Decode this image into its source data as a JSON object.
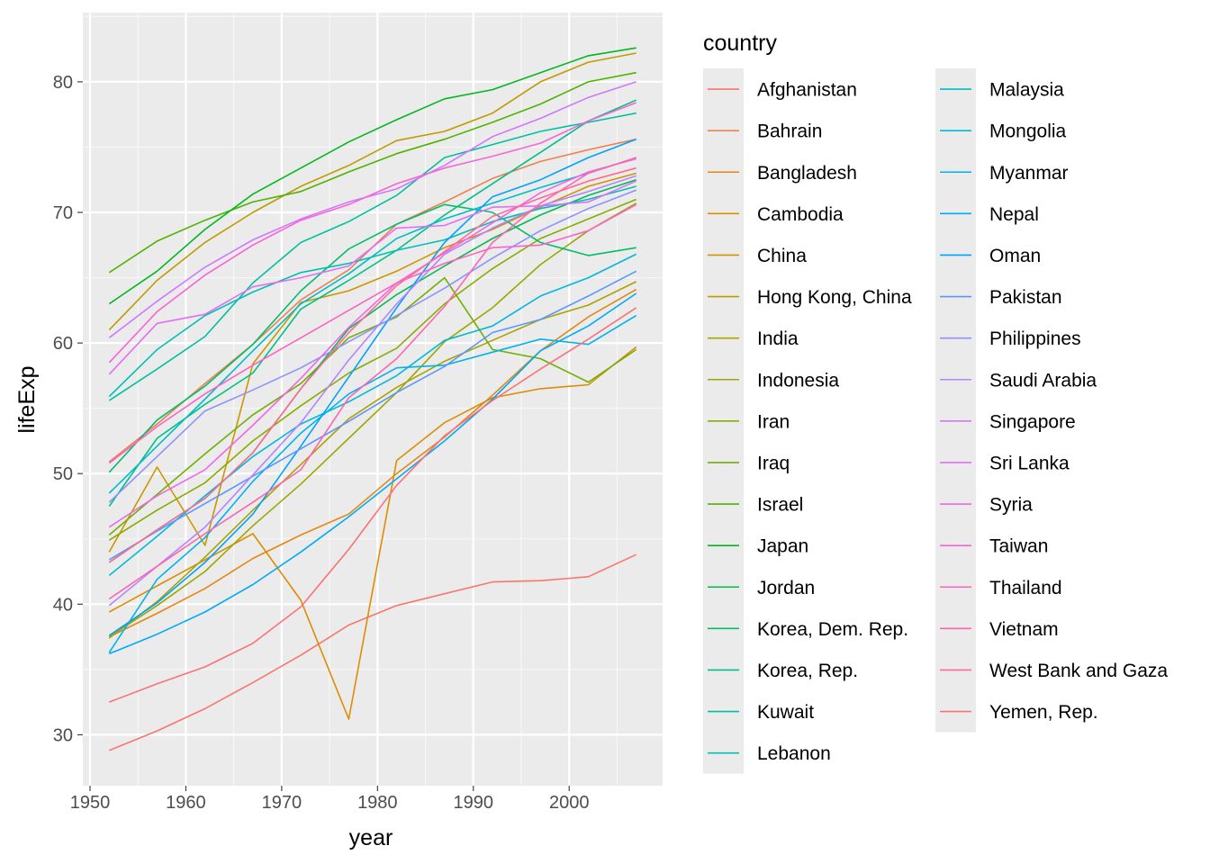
{
  "chart_data": {
    "type": "line",
    "xlabel": "year",
    "ylabel": "lifeExp",
    "x_ticks": [
      1950,
      1960,
      1970,
      1980,
      1990,
      2000
    ],
    "y_ticks": [
      30,
      40,
      50,
      60,
      70,
      80
    ],
    "xlim": [
      1949.25,
      2009.75
    ],
    "ylim": [
      26.1,
      85.3
    ],
    "grid": true,
    "legend_title": "country",
    "legend_position": "right",
    "x": [
      1952,
      1957,
      1962,
      1967,
      1972,
      1977,
      1982,
      1987,
      1992,
      1997,
      2002,
      2007
    ],
    "series": [
      {
        "name": "Afghanistan",
        "color": "#F8766D",
        "values": [
          28.8,
          30.3,
          32.0,
          34.0,
          36.1,
          38.4,
          39.9,
          40.8,
          41.7,
          41.8,
          42.1,
          43.8
        ]
      },
      {
        "name": "Bahrain",
        "color": "#F07F4F",
        "values": [
          50.9,
          53.8,
          56.9,
          59.9,
          63.3,
          65.6,
          69.1,
          70.8,
          72.6,
          73.9,
          74.8,
          75.6
        ]
      },
      {
        "name": "Bangladesh",
        "color": "#E68613",
        "values": [
          37.5,
          39.3,
          41.2,
          43.5,
          45.3,
          46.9,
          50.0,
          52.8,
          56.0,
          59.4,
          62.0,
          64.1
        ]
      },
      {
        "name": "Cambodia",
        "color": "#DB8E00",
        "values": [
          39.4,
          41.4,
          43.4,
          45.4,
          40.3,
          31.2,
          51.0,
          53.9,
          55.8,
          56.5,
          56.8,
          59.7
        ]
      },
      {
        "name": "China",
        "color": "#CD9600",
        "values": [
          44.0,
          50.5,
          44.5,
          58.4,
          63.1,
          64.0,
          65.5,
          67.3,
          68.7,
          70.4,
          72.0,
          73.0
        ]
      },
      {
        "name": "Hong Kong, China",
        "color": "#BE9C00",
        "values": [
          61.0,
          64.8,
          67.7,
          70.0,
          72.0,
          73.6,
          75.5,
          76.2,
          77.6,
          80.0,
          81.5,
          82.2
        ]
      },
      {
        "name": "India",
        "color": "#AEA200",
        "values": [
          37.4,
          40.2,
          43.6,
          47.2,
          50.7,
          54.2,
          56.6,
          58.6,
          60.2,
          61.8,
          62.9,
          64.7
        ]
      },
      {
        "name": "Indonesia",
        "color": "#9CA700",
        "values": [
          37.5,
          39.9,
          42.5,
          46.0,
          49.2,
          52.7,
          56.2,
          60.1,
          62.7,
          66.0,
          68.6,
          70.7
        ]
      },
      {
        "name": "Iran",
        "color": "#88AC00",
        "values": [
          44.9,
          47.2,
          49.3,
          52.5,
          55.2,
          57.7,
          59.6,
          63.0,
          65.7,
          68.0,
          69.5,
          71.0
        ]
      },
      {
        "name": "Iraq",
        "color": "#6FB000",
        "values": [
          45.3,
          48.4,
          51.5,
          54.5,
          56.9,
          60.4,
          62.0,
          65.0,
          59.5,
          58.8,
          57.0,
          59.5
        ]
      },
      {
        "name": "Israel",
        "color": "#4EB400",
        "values": [
          65.4,
          67.8,
          69.4,
          70.8,
          71.6,
          73.1,
          74.5,
          75.6,
          76.9,
          78.3,
          80.0,
          80.7
        ]
      },
      {
        "name": "Japan",
        "color": "#00B81F",
        "values": [
          63.0,
          65.5,
          68.7,
          71.4,
          73.4,
          75.4,
          77.1,
          78.7,
          79.4,
          80.7,
          82.0,
          82.6
        ]
      },
      {
        "name": "Jordan",
        "color": "#00BB4E",
        "values": [
          43.2,
          45.7,
          48.1,
          51.6,
          56.5,
          61.1,
          63.7,
          65.9,
          68.0,
          69.8,
          71.3,
          72.5
        ]
      },
      {
        "name": "Korea, Dem. Rep.",
        "color": "#00BE6C",
        "values": [
          50.1,
          54.1,
          56.7,
          59.9,
          64.0,
          67.2,
          69.1,
          70.6,
          70.0,
          67.7,
          66.7,
          67.3
        ]
      },
      {
        "name": "Korea, Rep.",
        "color": "#00C087",
        "values": [
          47.5,
          52.7,
          55.3,
          57.7,
          62.6,
          64.8,
          67.1,
          69.8,
          72.2,
          74.6,
          77.0,
          78.6
        ]
      },
      {
        "name": "Kuwait",
        "color": "#00C19F",
        "values": [
          55.6,
          58.0,
          60.5,
          64.6,
          67.7,
          69.3,
          71.3,
          74.2,
          75.2,
          76.2,
          76.9,
          77.6
        ]
      },
      {
        "name": "Lebanon",
        "color": "#00C0B5",
        "values": [
          55.9,
          59.5,
          62.1,
          63.9,
          65.4,
          66.1,
          67.1,
          67.9,
          69.3,
          70.3,
          71.0,
          72.0
        ]
      },
      {
        "name": "Malaysia",
        "color": "#00BDC9",
        "values": [
          48.5,
          52.1,
          55.7,
          59.4,
          63.0,
          65.3,
          68.0,
          69.5,
          70.7,
          71.9,
          73.0,
          74.2
        ]
      },
      {
        "name": "Mongolia",
        "color": "#00B9DB",
        "values": [
          42.2,
          45.2,
          48.3,
          51.3,
          53.8,
          55.5,
          57.5,
          60.2,
          61.3,
          63.6,
          65.0,
          66.8
        ]
      },
      {
        "name": "Myanmar",
        "color": "#00B3EB",
        "values": [
          36.3,
          41.9,
          45.1,
          49.4,
          53.1,
          56.1,
          58.1,
          58.3,
          59.3,
          60.3,
          59.9,
          62.1
        ]
      },
      {
        "name": "Nepal",
        "color": "#00ABF8",
        "values": [
          36.2,
          37.7,
          39.4,
          41.5,
          44.0,
          46.7,
          49.6,
          52.5,
          55.7,
          59.4,
          61.3,
          63.8
        ]
      },
      {
        "name": "Oman",
        "color": "#00A2FF",
        "values": [
          37.6,
          40.1,
          43.2,
          46.9,
          52.1,
          57.4,
          62.7,
          67.7,
          71.2,
          72.5,
          74.2,
          75.6
        ]
      },
      {
        "name": "Pakistan",
        "color": "#5B96FF",
        "values": [
          43.4,
          45.6,
          47.7,
          49.8,
          51.9,
          54.0,
          56.2,
          58.2,
          60.8,
          61.8,
          63.6,
          65.5
        ]
      },
      {
        "name": "Philippines",
        "color": "#8F91FF",
        "values": [
          47.8,
          51.3,
          54.8,
          56.4,
          58.1,
          60.1,
          62.1,
          64.2,
          66.5,
          68.6,
          70.3,
          71.7
        ]
      },
      {
        "name": "Saudi Arabia",
        "color": "#B385FF",
        "values": [
          39.9,
          42.9,
          45.9,
          49.9,
          53.9,
          58.7,
          63.0,
          66.8,
          68.8,
          70.5,
          71.6,
          72.8
        ]
      },
      {
        "name": "Singapore",
        "color": "#CF78FF",
        "values": [
          60.4,
          63.2,
          65.8,
          67.9,
          69.5,
          70.8,
          71.8,
          73.6,
          75.8,
          77.2,
          78.8,
          80.0
        ]
      },
      {
        "name": "Sri Lanka",
        "color": "#E26EF7",
        "values": [
          57.6,
          61.5,
          62.2,
          64.3,
          65.0,
          65.9,
          68.8,
          69.0,
          70.4,
          70.5,
          70.8,
          72.4
        ]
      },
      {
        "name": "Syria",
        "color": "#F166E8",
        "values": [
          45.9,
          48.3,
          50.3,
          53.7,
          57.3,
          61.2,
          64.6,
          66.9,
          69.2,
          71.5,
          73.1,
          74.1
        ]
      },
      {
        "name": "Taiwan",
        "color": "#FA62D7",
        "values": [
          58.5,
          62.4,
          65.2,
          67.5,
          69.4,
          70.6,
          72.2,
          73.4,
          74.3,
          75.3,
          77.0,
          78.4
        ]
      },
      {
        "name": "Thailand",
        "color": "#FF62C4",
        "values": [
          50.8,
          53.6,
          56.1,
          58.3,
          60.4,
          62.5,
          64.6,
          66.1,
          67.3,
          67.5,
          68.6,
          70.6
        ]
      },
      {
        "name": "Vietnam",
        "color": "#FF65AE",
        "values": [
          40.4,
          42.9,
          45.4,
          47.8,
          50.3,
          55.8,
          58.8,
          62.8,
          67.7,
          70.7,
          73.0,
          74.2
        ]
      },
      {
        "name": "West Bank and Gaza",
        "color": "#FF6B94",
        "values": [
          43.2,
          45.7,
          48.1,
          51.6,
          56.5,
          60.8,
          64.4,
          67.0,
          69.7,
          71.1,
          72.4,
          73.4
        ]
      },
      {
        "name": "Yemen, Rep.",
        "color": "#FC7179",
        "values": [
          32.5,
          33.9,
          35.2,
          37.0,
          39.8,
          44.2,
          49.1,
          52.9,
          55.6,
          58.0,
          60.3,
          62.7
        ]
      }
    ]
  }
}
